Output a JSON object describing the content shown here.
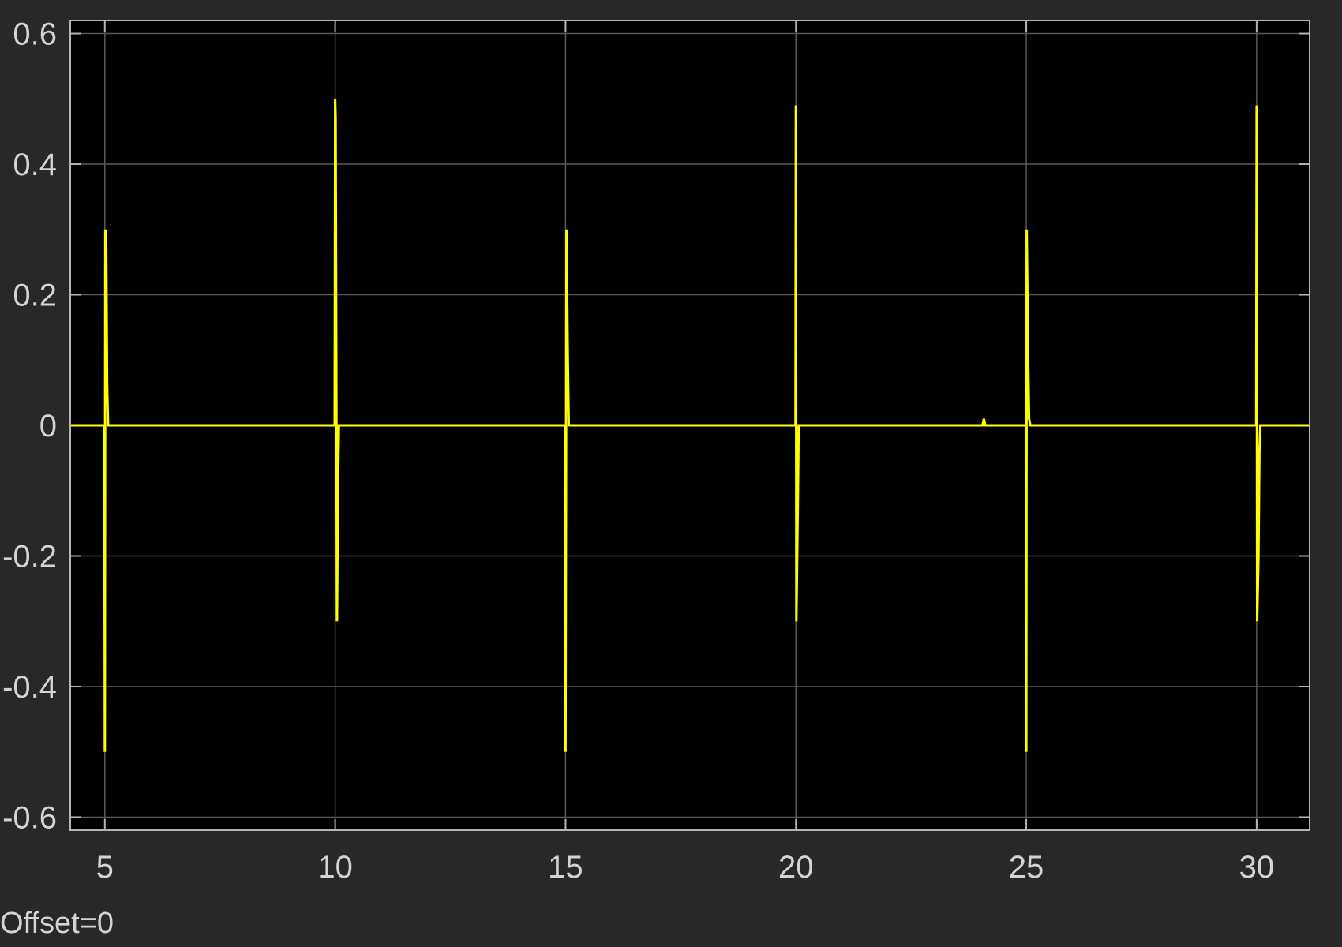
{
  "colors": {
    "figure_background": "#282828",
    "axes_background": "#000000",
    "grid": "#5a5a5a",
    "axes_border": "#b4b4b4",
    "tick_text": "#d4d4d4",
    "signal": "#ffff00"
  },
  "offset_label": "Offset=0",
  "chart_data": {
    "type": "line",
    "title": "",
    "xlabel": "",
    "ylabel": "",
    "xlim": [
      4.25,
      31.15
    ],
    "ylim": [
      -0.62,
      0.62
    ],
    "grid": true,
    "legend": "none",
    "x_ticks": [
      5,
      10,
      15,
      20,
      25,
      30
    ],
    "x_tick_labels": [
      "5",
      "10",
      "15",
      "20",
      "25",
      "30"
    ],
    "y_ticks": [
      0.6,
      0.4,
      0.2,
      0,
      -0.2,
      -0.4,
      -0.6
    ],
    "y_tick_labels": [
      "0.6",
      "0.4",
      "0.2",
      "0",
      "-0.2",
      "-0.4",
      "-0.6"
    ],
    "series": [
      {
        "color": "#ffff00",
        "x": [
          4.25,
          4.99,
          5.0,
          5.01,
          5.03,
          5.05,
          5.07,
          5.09,
          5.12,
          9.99,
          10.0,
          10.01,
          10.04,
          10.06,
          10.08,
          10.12,
          14.99,
          15.0,
          15.02,
          15.05,
          15.07,
          15.1,
          19.99,
          20.0,
          20.01,
          20.04,
          20.06,
          20.09,
          24.05,
          24.08,
          24.11,
          24.99,
          25.0,
          25.01,
          25.04,
          25.06,
          25.09,
          29.99,
          30.0,
          30.01,
          30.04,
          30.06,
          30.08,
          30.12,
          31.15
        ],
        "y": [
          0,
          0,
          -0.5,
          0.3,
          0.28,
          0.06,
          0.0,
          0.0,
          0,
          0,
          0.5,
          0.47,
          -0.3,
          -0.1,
          0.0,
          0,
          0,
          -0.5,
          0.3,
          0.1,
          0.0,
          0,
          0,
          0.49,
          -0.3,
          -0.13,
          0.0,
          0,
          0,
          0.01,
          0,
          0,
          -0.5,
          0.3,
          0.1,
          0.01,
          0,
          0,
          0.49,
          -0.3,
          -0.2,
          -0.04,
          0.0,
          0,
          0
        ]
      }
    ]
  }
}
